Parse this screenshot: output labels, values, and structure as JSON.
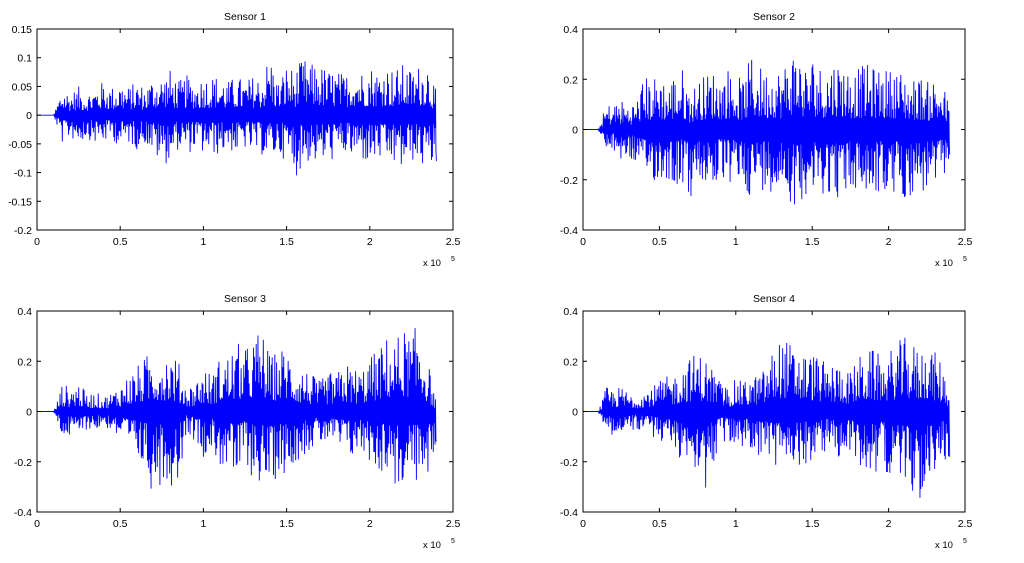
{
  "figure": {
    "background": "#ffffff"
  },
  "chart_data": [
    {
      "type": "line",
      "title": "Sensor 1",
      "xlim": [
        0,
        2.5
      ],
      "ylim": [
        -0.2,
        0.15
      ],
      "x_multiplier": {
        "base": "x 10",
        "exponent": "5"
      },
      "xticks": [
        {
          "value": 0,
          "label": "0"
        },
        {
          "value": 0.5,
          "label": "0.5"
        },
        {
          "value": 1,
          "label": "1"
        },
        {
          "value": 1.5,
          "label": "1.5"
        },
        {
          "value": 2,
          "label": "2"
        },
        {
          "value": 2.5,
          "label": "2.5"
        }
      ],
      "yticks": [
        {
          "value": 0.15,
          "label": "0.15"
        },
        {
          "value": 0.1,
          "label": "0.1"
        },
        {
          "value": 0.05,
          "label": "0.05"
        },
        {
          "value": 0,
          "label": "0"
        },
        {
          "value": -0.05,
          "label": "-0.05"
        },
        {
          "value": -0.1,
          "label": "-0.1"
        },
        {
          "value": -0.15,
          "label": "-0.15"
        },
        {
          "value": -0.2,
          "label": "-0.2"
        }
      ],
      "color": "#0000ff",
      "series": [
        {
          "x": [
            0,
            0.1,
            0.11,
            0.13,
            0.15,
            0.2,
            0.25,
            0.3,
            0.35,
            0.4,
            0.45,
            0.5,
            0.55,
            0.6,
            0.65,
            0.7,
            0.75,
            0.8,
            0.85,
            0.9,
            0.95,
            1.0,
            1.05,
            1.1,
            1.15,
            1.2,
            1.25,
            1.3,
            1.35,
            1.4,
            1.45,
            1.5,
            1.55,
            1.6,
            1.65,
            1.7,
            1.75,
            1.8,
            1.85,
            1.9,
            1.95,
            2.0,
            2.05,
            2.1,
            2.15,
            2.2,
            2.25,
            2.3,
            2.35,
            2.4
          ],
          "y_upper": [
            0,
            0,
            0.01,
            0.03,
            0.05,
            0.04,
            0.05,
            0.04,
            0.05,
            0.06,
            0.05,
            0.06,
            0.05,
            0.06,
            0.05,
            0.07,
            0.07,
            0.08,
            0.06,
            0.07,
            0.06,
            0.07,
            0.07,
            0.07,
            0.06,
            0.07,
            0.06,
            0.07,
            0.07,
            0.11,
            0.06,
            0.09,
            0.08,
            0.1,
            0.09,
            0.09,
            0.08,
            0.08,
            0.07,
            0.09,
            0.08,
            0.09,
            0.08,
            0.09,
            0.08,
            0.09,
            0.08,
            0.09,
            0.1,
            0.04
          ],
          "y_lower": [
            0,
            0,
            -0.01,
            -0.03,
            -0.05,
            -0.04,
            -0.05,
            -0.04,
            -0.05,
            -0.05,
            -0.04,
            -0.06,
            -0.05,
            -0.06,
            -0.05,
            -0.07,
            -0.09,
            -0.08,
            -0.06,
            -0.07,
            -0.06,
            -0.07,
            -0.07,
            -0.07,
            -0.06,
            -0.07,
            -0.06,
            -0.07,
            -0.07,
            -0.08,
            -0.07,
            -0.08,
            -0.11,
            -0.09,
            -0.08,
            -0.09,
            -0.08,
            -0.08,
            -0.07,
            -0.08,
            -0.08,
            -0.09,
            -0.08,
            -0.09,
            -0.09,
            -0.1,
            -0.08,
            -0.09,
            -0.1,
            -0.08
          ]
        }
      ]
    },
    {
      "type": "line",
      "title": "Sensor 2",
      "xlim": [
        0,
        2.5
      ],
      "ylim": [
        -0.4,
        0.4
      ],
      "x_multiplier": {
        "base": "x 10",
        "exponent": "5"
      },
      "xticks": [
        {
          "value": 0,
          "label": "0"
        },
        {
          "value": 0.5,
          "label": "0.5"
        },
        {
          "value": 1,
          "label": "1"
        },
        {
          "value": 1.5,
          "label": "1.5"
        },
        {
          "value": 2,
          "label": "2"
        },
        {
          "value": 2.5,
          "label": "2.5"
        }
      ],
      "yticks": [
        {
          "value": 0.4,
          "label": "0.4"
        },
        {
          "value": 0.2,
          "label": "0.2"
        },
        {
          "value": 0,
          "label": "0"
        },
        {
          "value": -0.2,
          "label": "-0.2"
        },
        {
          "value": -0.4,
          "label": "-0.4"
        }
      ],
      "color": "#0000ff",
      "series": [
        {
          "x": [
            0,
            0.1,
            0.11,
            0.13,
            0.15,
            0.2,
            0.25,
            0.3,
            0.35,
            0.4,
            0.45,
            0.5,
            0.55,
            0.6,
            0.65,
            0.7,
            0.75,
            0.8,
            0.85,
            0.9,
            0.95,
            1.0,
            1.05,
            1.1,
            1.15,
            1.2,
            1.25,
            1.3,
            1.35,
            1.4,
            1.45,
            1.5,
            1.55,
            1.6,
            1.65,
            1.7,
            1.75,
            1.8,
            1.85,
            1.9,
            1.95,
            2.0,
            2.05,
            2.1,
            2.15,
            2.2,
            2.25,
            2.3,
            2.35,
            2.4
          ],
          "y_upper": [
            0,
            0,
            0.02,
            0.06,
            0.1,
            0.11,
            0.12,
            0.1,
            0.12,
            0.22,
            0.2,
            0.24,
            0.18,
            0.23,
            0.25,
            0.15,
            0.2,
            0.22,
            0.24,
            0.21,
            0.25,
            0.22,
            0.2,
            0.3,
            0.26,
            0.24,
            0.26,
            0.24,
            0.31,
            0.35,
            0.25,
            0.3,
            0.26,
            0.26,
            0.29,
            0.27,
            0.24,
            0.25,
            0.26,
            0.25,
            0.25,
            0.24,
            0.25,
            0.23,
            0.2,
            0.22,
            0.19,
            0.21,
            0.2,
            0.09
          ],
          "y_lower": [
            0,
            0,
            -0.02,
            -0.06,
            -0.1,
            -0.09,
            -0.13,
            -0.12,
            -0.14,
            -0.22,
            -0.2,
            -0.23,
            -0.2,
            -0.23,
            -0.22,
            -0.29,
            -0.25,
            -0.22,
            -0.24,
            -0.21,
            -0.23,
            -0.22,
            -0.22,
            -0.28,
            -0.26,
            -0.23,
            -0.26,
            -0.25,
            -0.28,
            -0.34,
            -0.25,
            -0.3,
            -0.26,
            -0.26,
            -0.27,
            -0.29,
            -0.25,
            -0.25,
            -0.28,
            -0.27,
            -0.25,
            -0.32,
            -0.26,
            -0.28,
            -0.27,
            -0.26,
            -0.26,
            -0.24,
            -0.23,
            -0.1
          ]
        }
      ]
    },
    {
      "type": "line",
      "title": "Sensor 3",
      "xlim": [
        0,
        2.5
      ],
      "ylim": [
        -0.4,
        0.4
      ],
      "x_multiplier": {
        "base": "x 10",
        "exponent": "5"
      },
      "xticks": [
        {
          "value": 0,
          "label": "0"
        },
        {
          "value": 0.5,
          "label": "0.5"
        },
        {
          "value": 1,
          "label": "1"
        },
        {
          "value": 1.5,
          "label": "1.5"
        },
        {
          "value": 2,
          "label": "2"
        },
        {
          "value": 2.5,
          "label": "2.5"
        }
      ],
      "yticks": [
        {
          "value": 0.4,
          "label": "0.4"
        },
        {
          "value": 0.2,
          "label": "0.2"
        },
        {
          "value": 0,
          "label": "0"
        },
        {
          "value": -0.2,
          "label": "-0.2"
        },
        {
          "value": -0.4,
          "label": "-0.4"
        }
      ],
      "color": "#0000ff",
      "series": [
        {
          "x": [
            0,
            0.1,
            0.11,
            0.13,
            0.15,
            0.2,
            0.25,
            0.3,
            0.35,
            0.4,
            0.45,
            0.5,
            0.55,
            0.6,
            0.65,
            0.7,
            0.75,
            0.8,
            0.85,
            0.9,
            0.95,
            1.0,
            1.05,
            1.1,
            1.15,
            1.2,
            1.25,
            1.3,
            1.35,
            1.4,
            1.45,
            1.5,
            1.55,
            1.6,
            1.65,
            1.7,
            1.75,
            1.8,
            1.85,
            1.9,
            1.95,
            2.0,
            2.05,
            2.1,
            2.15,
            2.2,
            2.25,
            2.3,
            2.35,
            2.4
          ],
          "y_upper": [
            0,
            0,
            0.02,
            0.06,
            0.11,
            0.1,
            0.12,
            0.07,
            0.08,
            0.06,
            0.08,
            0.11,
            0.15,
            0.18,
            0.22,
            0.25,
            0.24,
            0.25,
            0.2,
            0.1,
            0.12,
            0.18,
            0.15,
            0.22,
            0.23,
            0.28,
            0.25,
            0.3,
            0.34,
            0.22,
            0.25,
            0.27,
            0.2,
            0.18,
            0.15,
            0.12,
            0.16,
            0.15,
            0.2,
            0.18,
            0.17,
            0.22,
            0.25,
            0.3,
            0.29,
            0.34,
            0.3,
            0.38,
            0.2,
            0.04
          ],
          "y_lower": [
            0,
            0,
            -0.02,
            -0.06,
            -0.1,
            -0.11,
            -0.1,
            -0.07,
            -0.08,
            -0.06,
            -0.08,
            -0.12,
            -0.16,
            -0.2,
            -0.24,
            -0.34,
            -0.28,
            -0.3,
            -0.28,
            -0.08,
            -0.12,
            -0.18,
            -0.16,
            -0.22,
            -0.24,
            -0.3,
            -0.2,
            -0.28,
            -0.29,
            -0.33,
            -0.24,
            -0.26,
            -0.2,
            -0.18,
            -0.15,
            -0.14,
            -0.12,
            -0.15,
            -0.18,
            -0.19,
            -0.17,
            -0.2,
            -0.25,
            -0.24,
            -0.3,
            -0.33,
            -0.27,
            -0.3,
            -0.28,
            -0.12
          ]
        }
      ]
    },
    {
      "type": "line",
      "title": "Sensor 4",
      "xlim": [
        0,
        2.5
      ],
      "ylim": [
        -0.4,
        0.4
      ],
      "x_multiplier": {
        "base": "x 10",
        "exponent": "5"
      },
      "xticks": [
        {
          "value": 0,
          "label": "0"
        },
        {
          "value": 0.5,
          "label": "0.5"
        },
        {
          "value": 1,
          "label": "1"
        },
        {
          "value": 1.5,
          "label": "1.5"
        },
        {
          "value": 2,
          "label": "2"
        },
        {
          "value": 2.5,
          "label": "2.5"
        }
      ],
      "yticks": [
        {
          "value": 0.4,
          "label": "0.4"
        },
        {
          "value": 0.2,
          "label": "0.2"
        },
        {
          "value": 0,
          "label": "0"
        },
        {
          "value": -0.2,
          "label": "-0.2"
        },
        {
          "value": -0.4,
          "label": "-0.4"
        }
      ],
      "color": "#0000ff",
      "series": [
        {
          "x": [
            0,
            0.1,
            0.11,
            0.13,
            0.15,
            0.2,
            0.25,
            0.3,
            0.35,
            0.4,
            0.45,
            0.5,
            0.55,
            0.6,
            0.65,
            0.7,
            0.75,
            0.8,
            0.85,
            0.9,
            0.95,
            1.0,
            1.05,
            1.1,
            1.15,
            1.2,
            1.25,
            1.3,
            1.35,
            1.4,
            1.45,
            1.5,
            1.55,
            1.6,
            1.65,
            1.7,
            1.75,
            1.8,
            1.85,
            1.9,
            1.95,
            2.0,
            2.05,
            2.1,
            2.15,
            2.2,
            2.25,
            2.3,
            2.35,
            2.4
          ],
          "y_upper": [
            0,
            0,
            0.02,
            0.05,
            0.1,
            0.09,
            0.1,
            0.08,
            0.07,
            0.09,
            0.1,
            0.12,
            0.14,
            0.15,
            0.19,
            0.22,
            0.24,
            0.22,
            0.18,
            0.12,
            0.1,
            0.13,
            0.12,
            0.14,
            0.15,
            0.18,
            0.26,
            0.3,
            0.28,
            0.25,
            0.24,
            0.24,
            0.22,
            0.18,
            0.2,
            0.19,
            0.16,
            0.22,
            0.24,
            0.25,
            0.22,
            0.24,
            0.27,
            0.3,
            0.28,
            0.25,
            0.29,
            0.24,
            0.2,
            0.08
          ],
          "y_lower": [
            0,
            0,
            -0.02,
            -0.05,
            -0.1,
            -0.09,
            -0.12,
            -0.08,
            -0.07,
            -0.09,
            -0.1,
            -0.12,
            -0.14,
            -0.17,
            -0.2,
            -0.24,
            -0.22,
            -0.34,
            -0.22,
            -0.14,
            -0.13,
            -0.15,
            -0.14,
            -0.16,
            -0.18,
            -0.2,
            -0.22,
            -0.25,
            -0.28,
            -0.24,
            -0.2,
            -0.24,
            -0.18,
            -0.16,
            -0.18,
            -0.2,
            -0.17,
            -0.22,
            -0.24,
            -0.25,
            -0.22,
            -0.25,
            -0.28,
            -0.3,
            -0.32,
            -0.37,
            -0.3,
            -0.26,
            -0.2,
            -0.18
          ]
        }
      ]
    }
  ]
}
